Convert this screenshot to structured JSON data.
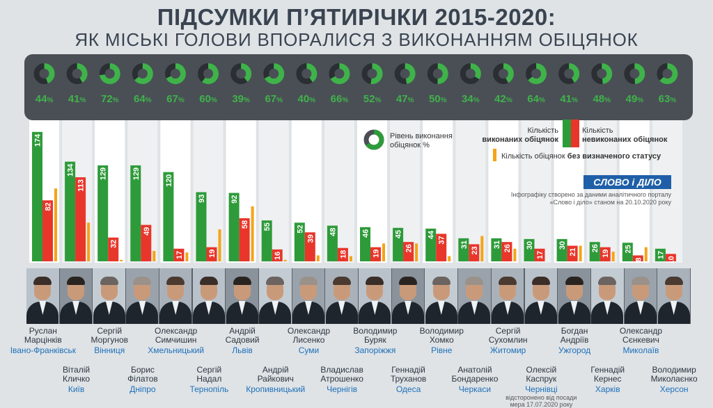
{
  "title": "ПІДСУМКИ П’ЯТИРІЧКИ 2015-2020:",
  "subtitle": "ЯК МІСЬКІ ГОЛОВИ ВПОРАЛИСЯ З ВИКОНАННЯМ ОБІЦЯНОК",
  "legend": {
    "rate": "Рівень виконання обіцянок %",
    "done_prefix": "Кількість",
    "done_bold": "виконаних обіцянок",
    "undone_prefix": "Кількість",
    "undone_bold": "невиконаних обіцянок",
    "nostatus_prefix": "Кількість обіцянок",
    "nostatus_bold": "без визначеного статусу"
  },
  "logo": "СЛОВО і ДІЛО",
  "source_note": "Інфографіку створено за даними аналітичного порталу «Слово і діло» станом на 20.10.2020 року",
  "colors": {
    "done": "#2e9b3a",
    "undone": "#e8362b",
    "nostatus": "#f4a418",
    "panel_dark": "#4a4f56",
    "column_light": "#ffffff",
    "column_alt": "#eef0f1"
  },
  "chart_data": {
    "type": "bar",
    "categories": [
      "Івано-Франківськ",
      "Київ",
      "Вінниця",
      "Дніпро",
      "Хмельницький",
      "Тернопіль",
      "Львів",
      "Кропивницький",
      "Суми",
      "Чернігів",
      "Запоріжжя",
      "Одеса",
      "Рівне",
      "Черкаси",
      "Житомир",
      "Чернівці",
      "Ужгород",
      "Харків",
      "Миколаїв",
      "Херсон"
    ],
    "rate_percent": [
      44,
      41,
      72,
      64,
      67,
      60,
      39,
      67,
      40,
      66,
      52,
      47,
      50,
      34,
      42,
      64,
      41,
      48,
      49,
      63
    ],
    "series": [
      {
        "name": "виконаних обіцянок",
        "values": [
          174,
          134,
          129,
          129,
          120,
          93,
          92,
          55,
          52,
          48,
          46,
          45,
          44,
          31,
          31,
          30,
          30,
          26,
          25,
          17
        ]
      },
      {
        "name": "невиконаних обіцянок",
        "values": [
          82,
          113,
          32,
          49,
          17,
          19,
          58,
          16,
          39,
          18,
          19,
          26,
          37,
          23,
          26,
          17,
          21,
          19,
          8,
          10
        ]
      },
      {
        "name": "без визначеного статусу",
        "values": [
          98,
          52,
          2,
          14,
          12,
          43,
          74,
          2,
          8,
          7,
          24,
          24,
          7,
          34,
          17,
          0,
          21,
          13,
          19,
          0
        ]
      }
    ],
    "ylim": [
      0,
      185
    ]
  },
  "mayors": [
    {
      "first": "Руслан",
      "last": "Марцінків",
      "city": "Івано-Франківськ",
      "note": ""
    },
    {
      "first": "Віталій",
      "last": "Кличко",
      "city": "Київ",
      "note": ""
    },
    {
      "first": "Сергій",
      "last": "Моргунов",
      "city": "Вінниця",
      "note": ""
    },
    {
      "first": "Борис",
      "last": "Філатов",
      "city": "Дніпро",
      "note": ""
    },
    {
      "first": "Олександр",
      "last": "Симчишин",
      "city": "Хмельницький",
      "note": ""
    },
    {
      "first": "Сергій",
      "last": "Надал",
      "city": "Тернопіль",
      "note": ""
    },
    {
      "first": "Андрій",
      "last": "Садовий",
      "city": "Львів",
      "note": ""
    },
    {
      "first": "Андрій",
      "last": "Райкович",
      "city": "Кропивницький",
      "note": ""
    },
    {
      "first": "Олександр",
      "last": "Лисенко",
      "city": "Суми",
      "note": ""
    },
    {
      "first": "Владислав",
      "last": "Атрошенко",
      "city": "Чернігів",
      "note": ""
    },
    {
      "first": "Володимир",
      "last": "Буряк",
      "city": "Запоріжжя",
      "note": ""
    },
    {
      "first": "Геннадій",
      "last": "Труханов",
      "city": "Одеса",
      "note": ""
    },
    {
      "first": "Володимир",
      "last": "Хомко",
      "city": "Рівне",
      "note": ""
    },
    {
      "first": "Анатолій",
      "last": "Бондаренко",
      "city": "Черкаси",
      "note": ""
    },
    {
      "first": "Сергій",
      "last": "Сухомлин",
      "city": "Житомир",
      "note": ""
    },
    {
      "first": "Олексій",
      "last": "Каспрук",
      "city": "Чернівці",
      "note": "відсторонено від посади мера 17.07.2020 року"
    },
    {
      "first": "Богдан",
      "last": "Андріїв",
      "city": "Ужгород",
      "note": ""
    },
    {
      "first": "Геннадій",
      "last": "Кернес",
      "city": "Харків",
      "note": ""
    },
    {
      "first": "Олександр",
      "last": "Сєнкевич",
      "city": "Миколаїв",
      "note": ""
    },
    {
      "first": "Володимир",
      "last": "Миколаєнко",
      "city": "Херсон",
      "note": ""
    }
  ]
}
